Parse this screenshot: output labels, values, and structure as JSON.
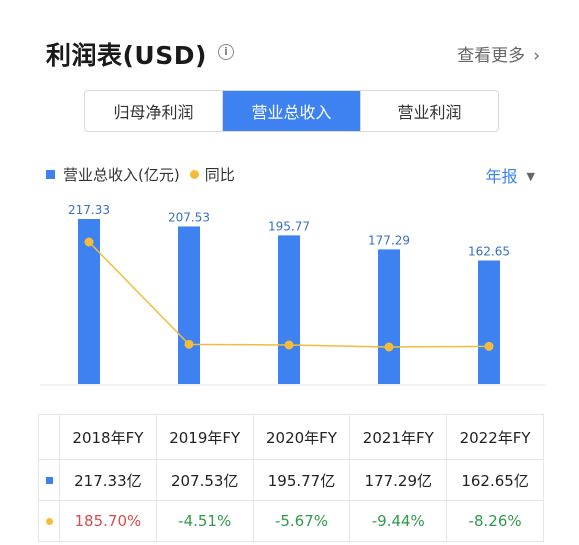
{
  "header": {
    "title": "利润表(USD)",
    "info_icon": "info-icon",
    "more_label": "查看更多",
    "more_icon": "chevron-right-icon"
  },
  "tabs": [
    {
      "label": "归母净利润",
      "active": false
    },
    {
      "label": "营业总收入",
      "active": true
    },
    {
      "label": "营业利润",
      "active": false
    }
  ],
  "legend": {
    "bar_label": "营业总收入(亿元)",
    "line_label": "同比"
  },
  "period_selector": {
    "label": "年报",
    "icon": "caret-down-icon"
  },
  "colors": {
    "accent": "#3d82f0",
    "line": "#f5bc3c",
    "positive": "#d74c4c",
    "negative": "#2f9a4b"
  },
  "chart_data": {
    "type": "bar",
    "categories": [
      "2018年FY",
      "2019年FY",
      "2020年FY",
      "2021年FY",
      "2022年FY"
    ],
    "series": [
      {
        "name": "营业总收入(亿元)",
        "type": "bar",
        "values": [
          217.33,
          207.53,
          195.77,
          177.29,
          162.65
        ],
        "labels": [
          "217.33",
          "207.53",
          "195.77",
          "177.29",
          "162.65"
        ]
      },
      {
        "name": "同比",
        "type": "line",
        "values": [
          185.7,
          -4.51,
          -5.67,
          -9.44,
          -8.26
        ]
      }
    ],
    "grid": false,
    "legend_position": "top-left"
  },
  "table": {
    "headers": [
      "2018年FY",
      "2019年FY",
      "2020年FY",
      "2021年FY",
      "2022年FY"
    ],
    "revenue_row": [
      "217.33亿",
      "207.53亿",
      "195.77亿",
      "177.29亿",
      "162.65亿"
    ],
    "yoy_row": [
      "185.70%",
      "-4.51%",
      "-5.67%",
      "-9.44%",
      "-8.26%"
    ]
  }
}
